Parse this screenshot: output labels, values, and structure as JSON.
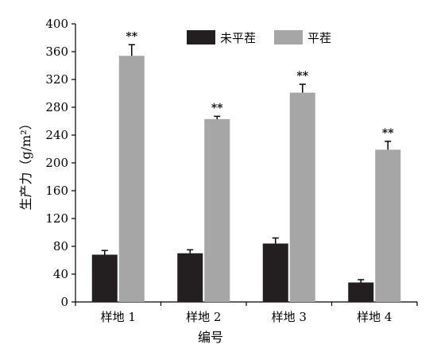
{
  "chart_data": {
    "type": "bar",
    "categories": [
      "样地 1",
      "样地 2",
      "样地 3",
      "样地 4"
    ],
    "series": [
      {
        "name": "未平茬",
        "values": [
          68,
          70,
          84,
          28
        ],
        "errors": [
          6,
          5,
          8,
          4
        ],
        "color": "#231f20"
      },
      {
        "name": "平茬",
        "values": [
          354,
          263,
          301,
          219
        ],
        "errors": [
          16,
          4,
          12,
          12
        ],
        "color": "#a6a6a6"
      }
    ],
    "annotations": [
      "**",
      "**",
      "**",
      "**"
    ],
    "xlabel": "编号",
    "ylabel": "生产力（g/m²）",
    "ylim": [
      0,
      400
    ],
    "yticks": [
      0,
      40,
      80,
      120,
      160,
      200,
      240,
      280,
      320,
      360,
      400
    ],
    "grid": false,
    "legend_position": "top-center"
  }
}
